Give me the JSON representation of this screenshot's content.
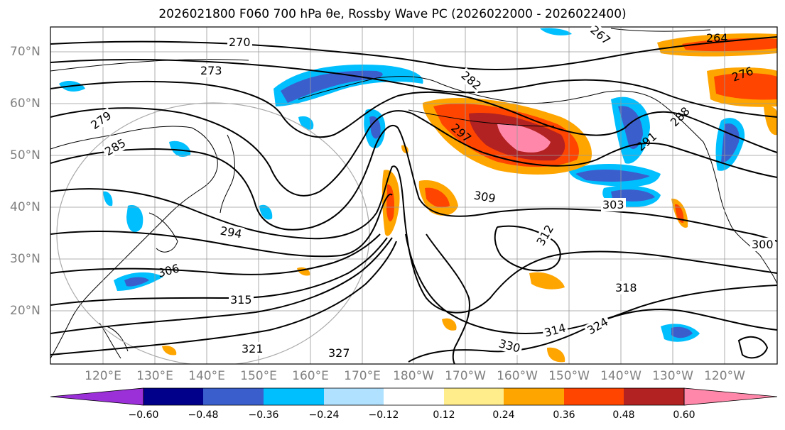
{
  "title": "2026021800 F060 700 hPa θe, Rossby Wave PC (2026022000 - 2026022400)",
  "latitude_labels": [
    "70°N",
    "60°N",
    "50°N",
    "40°N",
    "30°N",
    "20°N"
  ],
  "longitude_labels": [
    "120°E",
    "130°E",
    "140°E",
    "150°E",
    "160°E",
    "170°E",
    "180°W",
    "170°W",
    "160°W",
    "150°W",
    "140°W",
    "130°W",
    "120°W"
  ],
  "contour_labels": [
    "270",
    "273",
    "279",
    "285",
    "294",
    "306",
    "315",
    "321",
    "327",
    "330",
    "309",
    "303",
    "291",
    "288",
    "276",
    "264",
    "267",
    "300",
    "312",
    "318",
    "324",
    "282",
    "297",
    "314"
  ],
  "colorbar": {
    "tick_labels": [
      "−0.60",
      "−0.48",
      "−0.36",
      "−0.24",
      "−0.12",
      "0.12",
      "0.24",
      "0.36",
      "0.48",
      "0.60"
    ],
    "colors": [
      "#9b30d9",
      "#00008b",
      "#3a5fcd",
      "#00bfff",
      "#b0e2ff",
      "#ffffff",
      "#ffec8b",
      "#ffa500",
      "#ff4500",
      "#b22222",
      "#ff88aa"
    ]
  }
}
